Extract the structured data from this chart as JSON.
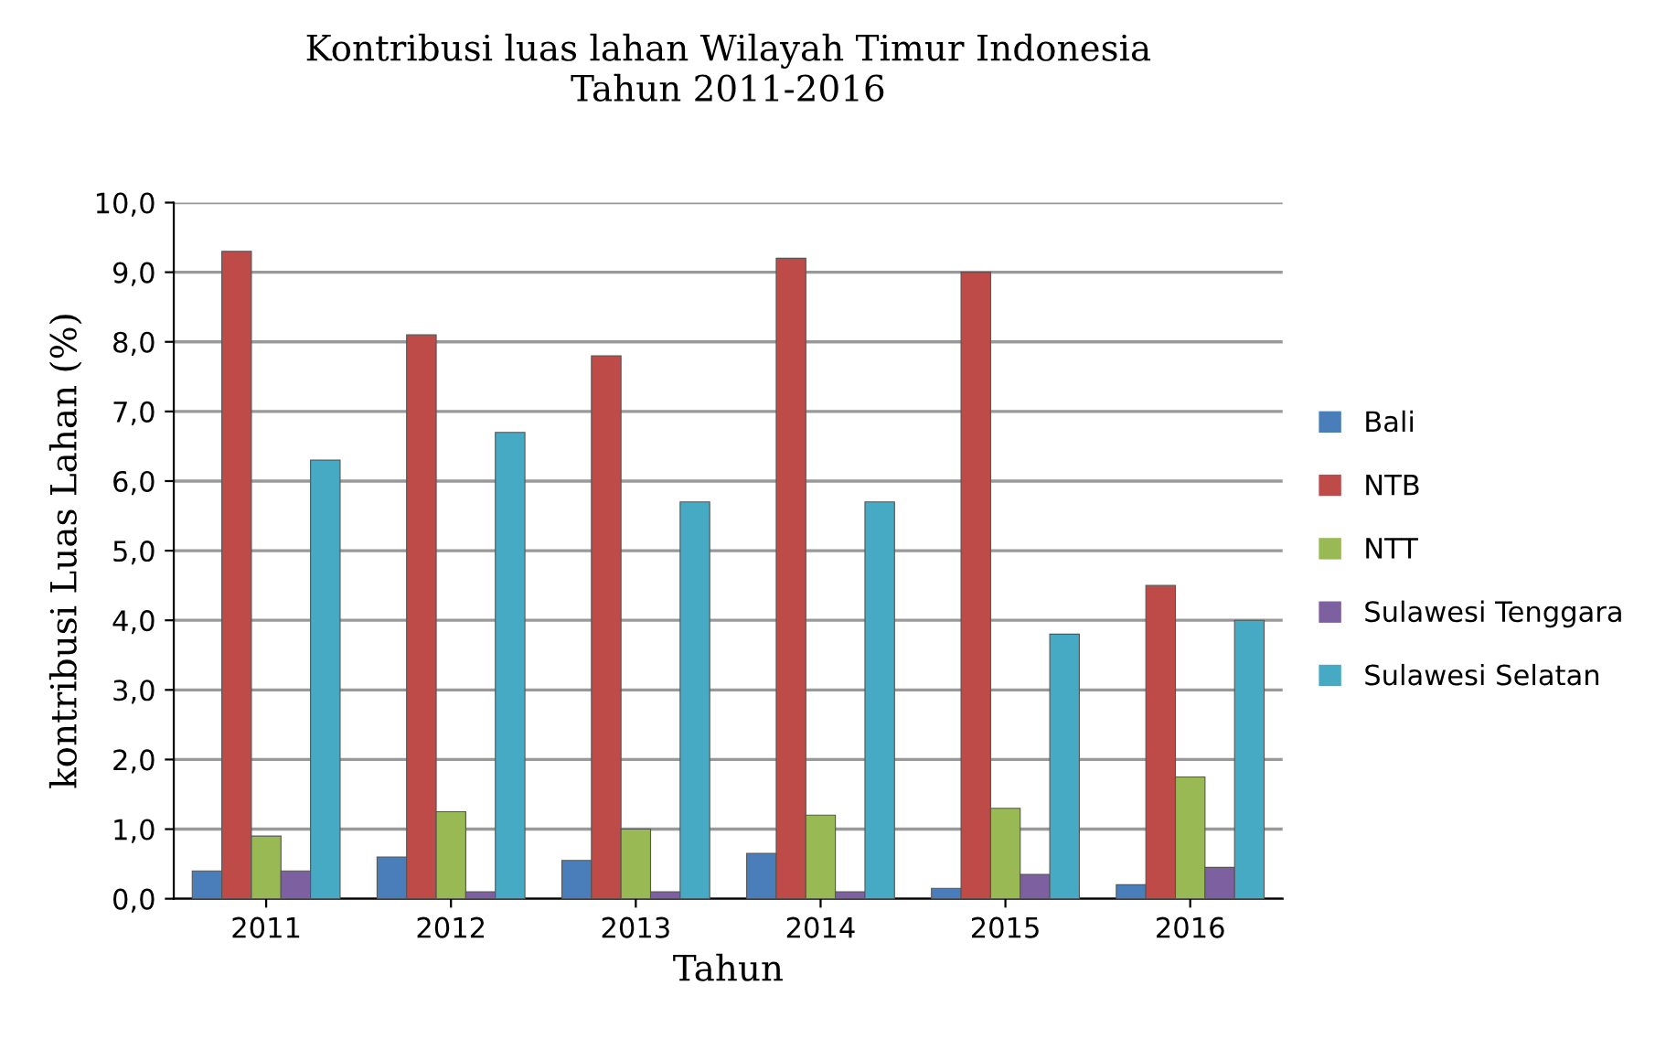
{
  "chart_data": {
    "type": "bar",
    "title": "Kontribusi luas lahan Wilayah Timur Indonesia\nTahun 2011-2016",
    "xlabel": "Tahun",
    "ylabel": "kontribusi Luas Lahan (%)",
    "categories": [
      "2011",
      "2012",
      "2013",
      "2014",
      "2015",
      "2016"
    ],
    "series": [
      {
        "name": "Bali",
        "color": "#4a7ebb",
        "values": [
          0.4,
          0.6,
          0.55,
          0.65,
          0.15,
          0.2
        ]
      },
      {
        "name": "NTB",
        "color": "#be4b48",
        "values": [
          9.3,
          8.1,
          7.8,
          9.2,
          9.0,
          4.5
        ]
      },
      {
        "name": "NTT",
        "color": "#98b954",
        "values": [
          0.9,
          1.25,
          1.0,
          1.2,
          1.3,
          1.75
        ]
      },
      {
        "name": "Sulawesi Tenggara",
        "color": "#7d60a0",
        "values": [
          0.4,
          0.1,
          0.1,
          0.1,
          0.35,
          0.45
        ]
      },
      {
        "name": "Sulawesi Selatan",
        "color": "#46aac5",
        "values": [
          6.3,
          6.7,
          5.7,
          5.7,
          3.8,
          4.0
        ]
      }
    ],
    "ylim": [
      0,
      10
    ],
    "yticks": [
      {
        "value": 0,
        "label": "0,0"
      },
      {
        "value": 1,
        "label": "1,0"
      },
      {
        "value": 2,
        "label": "2,0"
      },
      {
        "value": 3,
        "label": "3,0"
      },
      {
        "value": 4,
        "label": "4,0"
      },
      {
        "value": 5,
        "label": "5,0"
      },
      {
        "value": 6,
        "label": "6,0"
      },
      {
        "value": 7,
        "label": "7,0"
      },
      {
        "value": 8,
        "label": "8,0"
      },
      {
        "value": 9,
        "label": "9,0"
      },
      {
        "value": 10,
        "label": "10,0"
      }
    ],
    "grid": "y",
    "legend": "right"
  }
}
